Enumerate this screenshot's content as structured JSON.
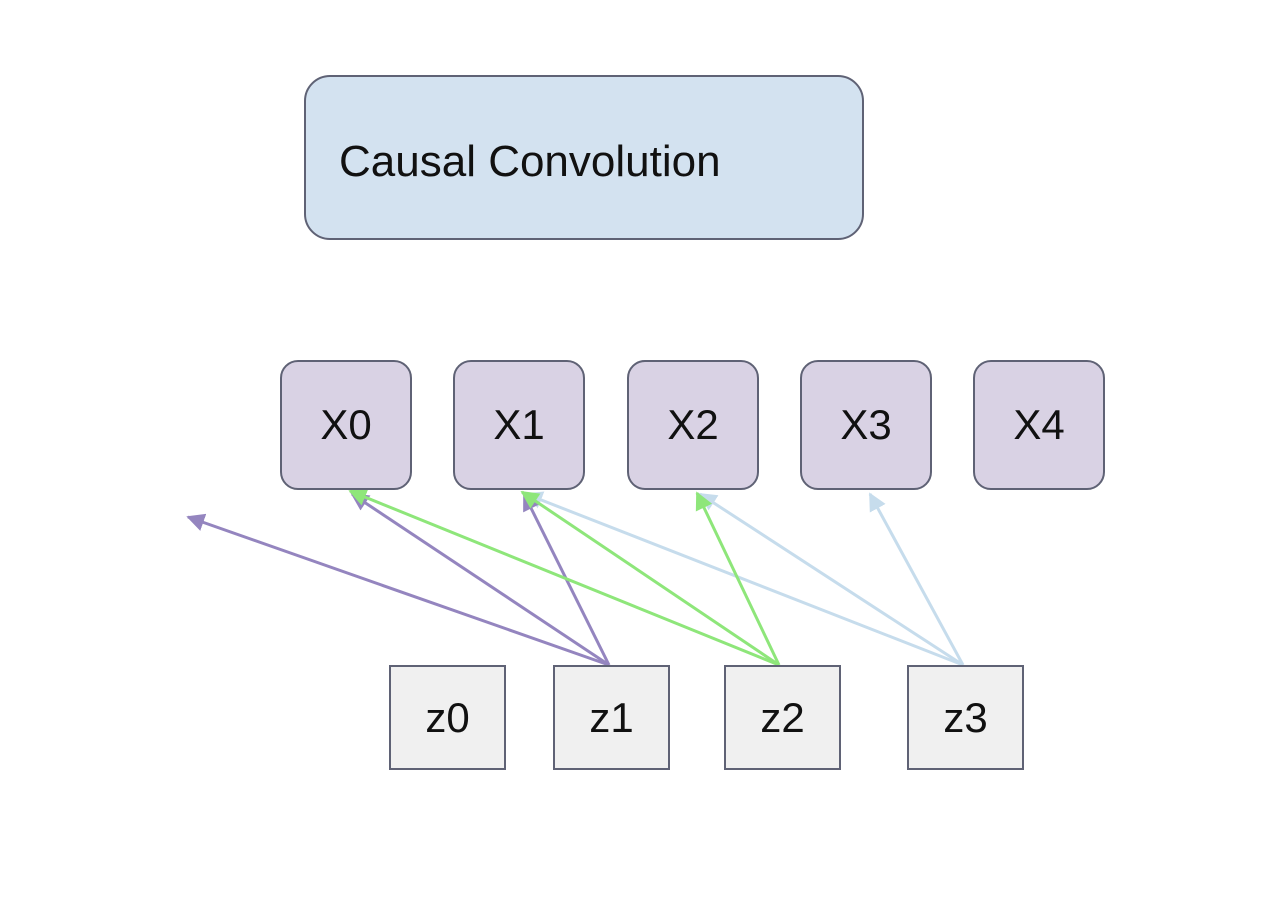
{
  "title": "Causal Convolution",
  "x_nodes": [
    "X0",
    "X1",
    "X2",
    "X3",
    "X4"
  ],
  "z_nodes": [
    "z0",
    "z1",
    "z2",
    "z3"
  ],
  "colors": {
    "title_fill": "#d3e2f0",
    "x_fill": "#d9d2e4",
    "z_fill": "#f0f0f0",
    "border": "#5f6275",
    "z1_edges": "#9485bf",
    "z2_edges": "#8ee67a",
    "z3_edges": "#c6dcec"
  },
  "edges": [
    {
      "from": "z1",
      "to": "off-left",
      "group": "z1"
    },
    {
      "from": "z1",
      "to": "X0",
      "group": "z1"
    },
    {
      "from": "z1",
      "to": "X1",
      "group": "z1"
    },
    {
      "from": "z2",
      "to": "X0",
      "group": "z2"
    },
    {
      "from": "z2",
      "to": "X1",
      "group": "z2"
    },
    {
      "from": "z2",
      "to": "X2",
      "group": "z2"
    },
    {
      "from": "z3",
      "to": "X1",
      "group": "z3"
    },
    {
      "from": "z3",
      "to": "X2",
      "group": "z3"
    },
    {
      "from": "z3",
      "to": "X3",
      "group": "z3"
    }
  ]
}
